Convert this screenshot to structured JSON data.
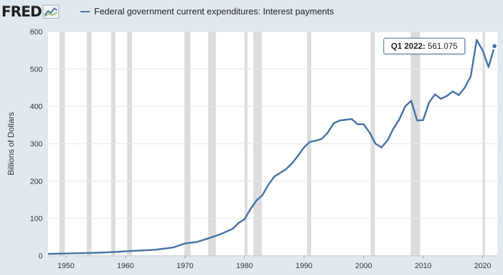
{
  "header": {
    "logo_text": "FRED",
    "logo_icon": "fred-line-chart-icon"
  },
  "tooltip": {
    "label": "Q1 2022:",
    "value": "561.075"
  },
  "colors": {
    "line": "#4572a7",
    "recession": "#dcdcdc",
    "plot_bg": "#ffffff",
    "page_bg": "#e1e9f0"
  },
  "chart_data": {
    "type": "line",
    "title": "",
    "xlabel": "",
    "ylabel": "Billions of Dollars",
    "xlim": [
      1947,
      2022.5
    ],
    "ylim": [
      0,
      600
    ],
    "x_ticks": [
      1950,
      1960,
      1970,
      1980,
      1990,
      2000,
      2010,
      2020
    ],
    "y_ticks": [
      0,
      100,
      200,
      300,
      400,
      500,
      600
    ],
    "grid": true,
    "legend": "top-left",
    "recessions": [
      [
        1948.9,
        1949.8
      ],
      [
        1953.5,
        1954.3
      ],
      [
        1957.6,
        1958.3
      ],
      [
        1960.3,
        1961.1
      ],
      [
        1969.9,
        1970.9
      ],
      [
        1973.9,
        1975.2
      ],
      [
        1980.0,
        1980.5
      ],
      [
        1981.5,
        1982.9
      ],
      [
        1990.5,
        1991.2
      ],
      [
        2001.2,
        2001.9
      ],
      [
        2007.9,
        2009.5
      ],
      [
        2020.0,
        2020.4
      ]
    ],
    "series": [
      {
        "name": "Federal government current expenditures: Interest payments",
        "x": [
          1947,
          1950,
          1955,
          1958,
          1960,
          1965,
          1968,
          1970,
          1972,
          1974,
          1976,
          1978,
          1979,
          1980,
          1981,
          1982,
          1983,
          1984,
          1985,
          1986,
          1987,
          1988,
          1989,
          1990,
          1991,
          1992,
          1993,
          1994,
          1995,
          1996,
          1997,
          1998,
          1999,
          2000,
          2001,
          2002,
          2003,
          2004,
          2005,
          2006,
          2007,
          2008,
          2009,
          2010,
          2011,
          2012,
          2013,
          2014,
          2015,
          2016,
          2017,
          2018,
          2019,
          2020,
          2021,
          2022
        ],
        "values": [
          5,
          6,
          8,
          10,
          12,
          16,
          22,
          33,
          37,
          47,
          58,
          72,
          88,
          98,
          125,
          148,
          162,
          190,
          212,
          222,
          232,
          248,
          268,
          290,
          305,
          308,
          313,
          330,
          355,
          362,
          364,
          366,
          352,
          352,
          330,
          300,
          290,
          308,
          340,
          365,
          400,
          415,
          362,
          363,
          410,
          432,
          420,
          428,
          440,
          430,
          450,
          480,
          578,
          550,
          505,
          561.075
        ]
      }
    ]
  }
}
